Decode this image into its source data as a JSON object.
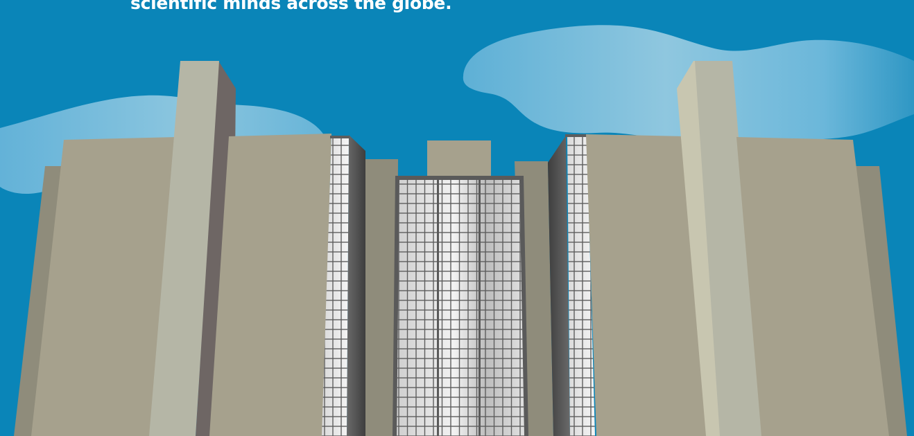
{
  "caption": {
    "line_1": "scientific minds across the globe."
  },
  "colors": {
    "sky": "#0a85b8",
    "cloud": "#8ec6df",
    "building_tan": "#a6a18d",
    "building_light": "#b5b6a6",
    "building_shadow": "#8f8c7b",
    "building_dark": "#6e6664",
    "glass_frame": "#555555",
    "glass_window": "#e8e8e8",
    "text": "#ffffff"
  }
}
